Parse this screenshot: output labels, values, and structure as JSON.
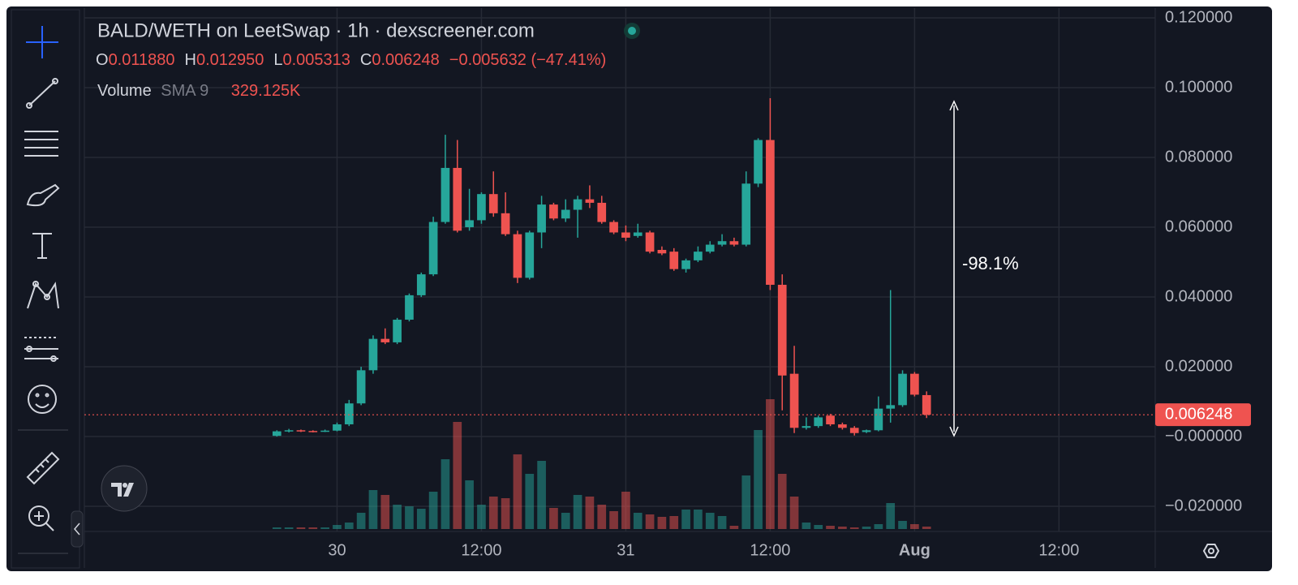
{
  "chart_data": {
    "type": "candlestick",
    "title": "BALD/WETH on LeetSwap · 1h · dexscreener.com",
    "ohlc_legend": [
      {
        "key": "O",
        "value": "0.011880"
      },
      {
        "key": "H",
        "value": "0.012950"
      },
      {
        "key": "L",
        "value": "0.005313"
      },
      {
        "key": "C",
        "value": "0.006248"
      }
    ],
    "change": "−0.005632 (−47.41%)",
    "volume_legend": {
      "name": "Volume",
      "indicator": "SMA 9",
      "value": "329.125K"
    },
    "annotation": "-98.1%",
    "up_color": "#26a69a",
    "down_color": "#ef5350",
    "grid": true,
    "x": [
      -5,
      -4,
      -3,
      -2,
      -1,
      0,
      1,
      2,
      3,
      4,
      5,
      6,
      7,
      8,
      9,
      10,
      11,
      12,
      13,
      14,
      15,
      16,
      17,
      18,
      19,
      20,
      21,
      22,
      23,
      24,
      25,
      26,
      27,
      28,
      29,
      30,
      31,
      32,
      33,
      34,
      35,
      36,
      37,
      38,
      39,
      40,
      41,
      42,
      43,
      44,
      45,
      46,
      47,
      48,
      49
    ],
    "open": [
      0.0002,
      0.0015,
      0.0018,
      0.0016,
      0.0015,
      0.0017,
      0.0035,
      0.0095,
      0.019,
      0.028,
      0.027,
      0.0335,
      0.0405,
      0.0465,
      0.0615,
      0.077,
      0.06,
      0.062,
      0.0695,
      0.064,
      0.058,
      0.0455,
      0.0585,
      0.0665,
      0.0625,
      0.065,
      0.068,
      0.067,
      0.0615,
      0.0585,
      0.0575,
      0.0585,
      0.0535,
      0.053,
      0.048,
      0.0505,
      0.053,
      0.055,
      0.056,
      0.055,
      0.0725,
      0.085,
      0.0435,
      0.018,
      0.0025,
      0.003,
      0.006,
      0.0035,
      0.0025,
      0.0013,
      0.0018,
      0.008,
      0.009,
      0.018,
      0.01188
    ],
    "high": [
      0.0018,
      0.0022,
      0.002,
      0.0018,
      0.002,
      0.004,
      0.0105,
      0.02,
      0.029,
      0.031,
      0.034,
      0.041,
      0.047,
      0.063,
      0.0865,
      0.085,
      0.071,
      0.07,
      0.076,
      0.07,
      0.059,
      0.059,
      0.069,
      0.067,
      0.068,
      0.069,
      0.072,
      0.069,
      0.062,
      0.0605,
      0.061,
      0.059,
      0.0545,
      0.054,
      0.051,
      0.0545,
      0.056,
      0.058,
      0.057,
      0.076,
      0.0855,
      0.097,
      0.0465,
      0.026,
      0.0055,
      0.006,
      0.0065,
      0.004,
      0.003,
      0.002,
      0.0115,
      0.042,
      0.019,
      0.0185,
      0.01295
    ],
    "low": [
      0,
      0.0012,
      0.0013,
      0.0012,
      0.0013,
      0.0015,
      0.003,
      0.009,
      0.018,
      0.0265,
      0.0265,
      0.033,
      0.04,
      0.046,
      0.061,
      0.0585,
      0.059,
      0.061,
      0.063,
      0.0575,
      0.044,
      0.045,
      0.054,
      0.062,
      0.0615,
      0.057,
      0.0655,
      0.061,
      0.058,
      0.056,
      0.057,
      0.0525,
      0.052,
      0.0475,
      0.047,
      0.05,
      0.0525,
      0.0545,
      0.0545,
      0.0545,
      0.0715,
      0.042,
      0.0075,
      0.001,
      0.002,
      0.0025,
      0.003,
      0.002,
      0.0003,
      0.001,
      0.0015,
      0.004,
      0.0085,
      0.0115,
      0.005313
    ],
    "close": [
      0.0015,
      0.0018,
      0.0016,
      0.0015,
      0.0017,
      0.0035,
      0.0095,
      0.019,
      0.028,
      0.027,
      0.0335,
      0.0405,
      0.0465,
      0.0615,
      0.077,
      0.059,
      0.062,
      0.0695,
      0.064,
      0.058,
      0.0455,
      0.0585,
      0.0665,
      0.0625,
      0.065,
      0.068,
      0.067,
      0.0615,
      0.0585,
      0.057,
      0.0585,
      0.053,
      0.0525,
      0.048,
      0.0505,
      0.053,
      0.055,
      0.056,
      0.055,
      0.0725,
      0.085,
      0.0435,
      0.0175,
      0.0025,
      0.003,
      0.0055,
      0.0035,
      0.0025,
      0.001,
      0.0018,
      0.008,
      0.009,
      0.018,
      0.012,
      0.006248
    ],
    "volume": [
      80000,
      80000,
      80000,
      80000,
      80000,
      200000,
      320000,
      800000,
      1920000,
      1680000,
      1200000,
      1120000,
      1000000,
      1840000,
      3440000,
      5280000,
      2400000,
      1200000,
      1600000,
      1520000,
      3680000,
      2720000,
      3360000,
      1040000,
      800000,
      1680000,
      1600000,
      1200000,
      880000,
      1840000,
      800000,
      720000,
      600000,
      640000,
      960000,
      960000,
      800000,
      640000,
      160000,
      2640000,
      4880000,
      6400000,
      2720000,
      1600000,
      320000,
      200000,
      160000,
      120000,
      80000,
      120000,
      240000,
      1280000,
      400000,
      240000,
      120000
    ],
    "xlim": [
      -21,
      68
    ],
    "xticks": [
      {
        "value": 0,
        "label": "30"
      },
      {
        "value": 12,
        "label": "12:00"
      },
      {
        "value": 24,
        "label": "31"
      },
      {
        "value": 36,
        "label": "12:00"
      },
      {
        "value": 48,
        "label": "Aug"
      },
      {
        "value": 60,
        "label": "12:00"
      }
    ],
    "ylim": [
      -0.0272,
      0.1228
    ],
    "yticks": [
      {
        "value": 0.12,
        "label": "0.120000"
      },
      {
        "value": 0.1,
        "label": "0.100000"
      },
      {
        "value": 0.08,
        "label": "0.080000"
      },
      {
        "value": 0.06,
        "label": "0.060000"
      },
      {
        "value": 0.04,
        "label": "0.040000"
      },
      {
        "value": 0.02,
        "label": "0.020000"
      },
      {
        "value": 0,
        "label": "−0.000000"
      },
      {
        "value": -0.02,
        "label": "−0.020000"
      }
    ],
    "last_price": {
      "value": 0.006248,
      "label": "0.006248"
    }
  }
}
